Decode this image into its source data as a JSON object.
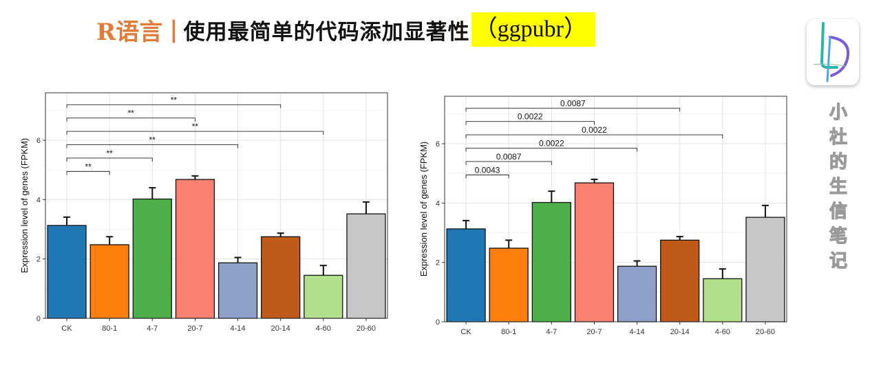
{
  "title": {
    "lang": "R语言",
    "separator": "|",
    "main": "使用最简单的代码添加显著性",
    "package": "（ggpubr）"
  },
  "author": "小杜的生信笔记",
  "colors": {
    "title_accent": "#e07b39",
    "highlight": "#ffff00",
    "bars": [
      "#1f77b4",
      "#ff7f0e",
      "#4daf4a",
      "#fa8072",
      "#8e9fca",
      "#c05a1a",
      "#b2df8a",
      "#c7c7c7"
    ]
  },
  "chart_data": [
    {
      "type": "bar",
      "ylabel": "Expression level of genes (FPKM)",
      "xlabel": "",
      "categories": [
        "CK",
        "80-1",
        "4-7",
        "20-7",
        "4-14",
        "20-14",
        "4-60",
        "20-60"
      ],
      "values": [
        3.13,
        2.48,
        4.02,
        4.68,
        1.87,
        2.75,
        1.45,
        3.52
      ],
      "errors": [
        0.28,
        0.27,
        0.38,
        0.12,
        0.18,
        0.12,
        0.33,
        0.4
      ],
      "ylim": [
        0,
        7.6
      ],
      "yticks": [
        0,
        2,
        4,
        6
      ],
      "grid": true,
      "comparisons": [
        {
          "from": "CK",
          "to": "80-1",
          "y": 4.95,
          "label": "**"
        },
        {
          "from": "CK",
          "to": "4-7",
          "y": 5.4,
          "label": "**"
        },
        {
          "from": "CK",
          "to": "4-14",
          "y": 5.85,
          "label": "**"
        },
        {
          "from": "CK",
          "to": "4-60",
          "y": 6.3,
          "label": "**"
        },
        {
          "from": "CK",
          "to": "20-7",
          "y": 6.75,
          "label": "**"
        },
        {
          "from": "CK",
          "to": "20-14",
          "y": 7.2,
          "label": "**"
        }
      ]
    },
    {
      "type": "bar",
      "ylabel": "Expression level of genes (FPKM)",
      "xlabel": "",
      "categories": [
        "CK",
        "80-1",
        "4-7",
        "20-7",
        "4-14",
        "20-14",
        "4-60",
        "20-60"
      ],
      "values": [
        3.13,
        2.48,
        4.02,
        4.68,
        1.87,
        2.75,
        1.45,
        3.52
      ],
      "errors": [
        0.28,
        0.27,
        0.38,
        0.12,
        0.18,
        0.12,
        0.33,
        0.4
      ],
      "ylim": [
        0,
        7.6
      ],
      "yticks": [
        0,
        2,
        4,
        6
      ],
      "grid": true,
      "comparisons": [
        {
          "from": "CK",
          "to": "80-1",
          "y": 4.95,
          "label": "0.0043"
        },
        {
          "from": "CK",
          "to": "4-7",
          "y": 5.4,
          "label": "0.0087"
        },
        {
          "from": "CK",
          "to": "4-14",
          "y": 5.85,
          "label": "0.0022"
        },
        {
          "from": "CK",
          "to": "4-60",
          "y": 6.3,
          "label": "0.0022"
        },
        {
          "from": "CK",
          "to": "20-7",
          "y": 6.75,
          "label": "0.0022"
        },
        {
          "from": "CK",
          "to": "20-14",
          "y": 7.2,
          "label": "0.0087"
        }
      ]
    }
  ]
}
